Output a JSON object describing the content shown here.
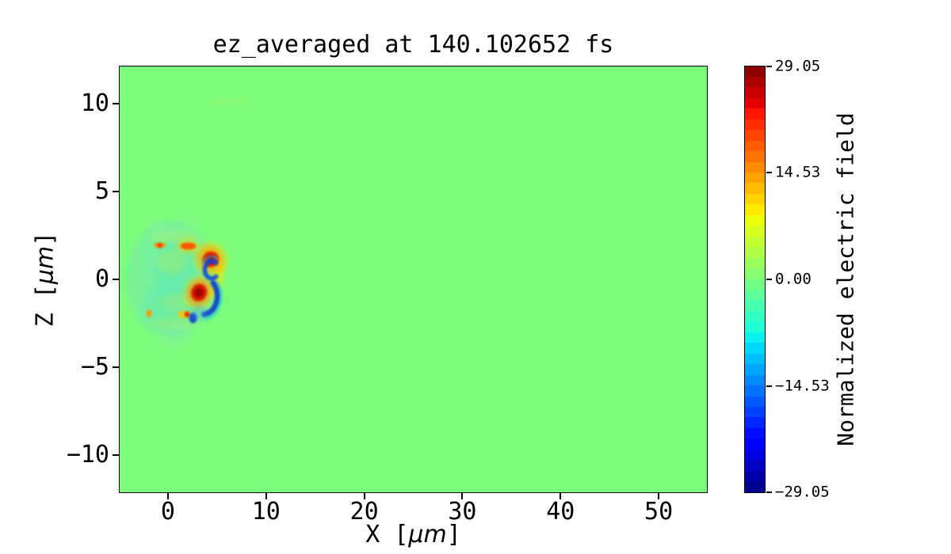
{
  "figure": {
    "background": "#ffffff"
  },
  "chart_data": {
    "type": "heatmap",
    "title": "ez_averaged at 140.102652 fs",
    "xlabel": "X [μm]",
    "ylabel": "Z [μm]",
    "xlabel_parts": {
      "pre": "X [",
      "math": "μm",
      "post": "]"
    },
    "ylabel_parts": {
      "pre": "Z [",
      "math": "μm",
      "post": "]"
    },
    "xlim": [
      -5,
      55
    ],
    "ylim": [
      -12.15,
      12.15
    ],
    "x_ticks": [
      0,
      10,
      20,
      30,
      40,
      50
    ],
    "x_tick_labels": [
      "0",
      "10",
      "20",
      "30",
      "40",
      "50"
    ],
    "y_ticks": [
      10,
      5,
      0,
      -5,
      -10
    ],
    "y_tick_labels": [
      "10",
      "5",
      "0",
      "−5",
      "−10"
    ],
    "grid": false,
    "colormap": "jet",
    "n_levels": 40,
    "field_background_value": 0.0,
    "plot_bg_color": "#7bfd7b",
    "colorbar": {
      "label": "Normalized electric field",
      "vmin": -29.05,
      "vmax": 29.05,
      "ticks": [
        29.05,
        14.53,
        0.0,
        -14.53,
        -29.05
      ],
      "tick_labels": [
        "29.05",
        "14.53",
        "0.00",
        "−14.53",
        "−29.05"
      ]
    },
    "features": [
      {
        "k": "e",
        "x": 0.3,
        "z": 0.0,
        "rx": 4.6,
        "rz": 3.3,
        "c": "#6ce9b4",
        "o": 0.5,
        "f": 2
      },
      {
        "k": "e",
        "x": 1.2,
        "z": 0.3,
        "rx": 2.6,
        "rz": 2.2,
        "c": "#58e2c8",
        "o": 0.35,
        "f": 2
      },
      {
        "k": "e",
        "x": 0.0,
        "z": -1.6,
        "rx": 2.6,
        "rz": 1.5,
        "c": "#62e6be",
        "o": 0.3,
        "f": 2
      },
      {
        "k": "e",
        "x": -3.3,
        "z": 0.3,
        "rx": 0.25,
        "rz": 2.4,
        "c": "#98ee8e",
        "o": 0.45,
        "f": 2
      },
      {
        "k": "e",
        "x": -2.5,
        "z": -0.8,
        "rx": 0.2,
        "rz": 2.0,
        "c": "#8ceca2",
        "o": 0.4,
        "f": 2
      },
      {
        "k": "e",
        "x": -4.0,
        "z": -1.2,
        "rx": 0.18,
        "rz": 1.6,
        "c": "#a2f082",
        "o": 0.35,
        "f": 2
      },
      {
        "k": "e",
        "x": -1.6,
        "z": 0.8,
        "rx": 0.3,
        "rz": 2.6,
        "c": "#84ecb8",
        "o": 0.35,
        "f": 2
      },
      {
        "k": "e",
        "x": 0.3,
        "z": 1.0,
        "rx": 1.5,
        "rz": 0.7,
        "c": "#aaee66",
        "o": 0.4,
        "f": 2
      },
      {
        "k": "e",
        "x": 0.8,
        "z": -1.3,
        "rx": 1.5,
        "rz": 0.5,
        "c": "#aaee66",
        "o": 0.4,
        "f": 2
      },
      {
        "k": "e",
        "x": 0.6,
        "z": 2.45,
        "rx": 2.6,
        "rz": 0.35,
        "c": "#bcf262",
        "o": 0.4,
        "f": 2
      },
      {
        "k": "e",
        "x": 0.6,
        "z": -2.55,
        "rx": 2.6,
        "rz": 0.35,
        "c": "#bcf262",
        "o": 0.35,
        "f": 2
      },
      {
        "k": "e",
        "x": -0.5,
        "z": 2.9,
        "rx": 1.6,
        "rz": 0.5,
        "c": "#90eea0",
        "o": 0.3,
        "f": 2
      },
      {
        "k": "e",
        "x": 1.8,
        "z": 3.2,
        "rx": 1.2,
        "rz": 0.4,
        "c": "#90eea0",
        "o": 0.25,
        "f": 2
      },
      {
        "k": "e",
        "x": 0.5,
        "z": -3.3,
        "rx": 1.8,
        "rz": 0.6,
        "c": "#8eeda6",
        "o": 0.3,
        "f": 2
      },
      {
        "k": "e",
        "x": 6.2,
        "z": 10.15,
        "rx": 2.3,
        "rz": 0.12,
        "c": "#c4f25e",
        "o": 0.4,
        "f": 2
      },
      {
        "k": "a",
        "x": 3.5,
        "z": 0.35,
        "rx": 1.7,
        "rz": 1.3,
        "a0": -60,
        "a1": 70,
        "w": 0.5,
        "c": "#ffe400",
        "o": 0.75,
        "f": 2
      },
      {
        "k": "e",
        "x": 4.3,
        "z": 1.15,
        "rx": 1.7,
        "rz": 1.0,
        "rot": -35,
        "c": "#ffe000",
        "o": 0.45,
        "f": 2
      },
      {
        "k": "e",
        "x": 4.3,
        "z": 1.15,
        "rx": 1.3,
        "rz": 0.8,
        "rot": -35,
        "c": "#ff9000",
        "o": 0.5,
        "f": 2
      },
      {
        "k": "e",
        "x": 2.0,
        "z": 1.9,
        "rx": 1.1,
        "rz": 0.4,
        "c": "#ffd800",
        "o": 0.6,
        "f": 2
      },
      {
        "k": "e",
        "x": 3.1,
        "z": -0.75,
        "rx": 1.5,
        "rz": 1.0,
        "rot": 20,
        "c": "#ffdc00",
        "o": 0.45,
        "f": 2
      },
      {
        "k": "e",
        "x": 3.1,
        "z": -0.75,
        "rx": 1.15,
        "rz": 0.75,
        "rot": 20,
        "c": "#ff7800",
        "o": 0.6,
        "f": 2
      },
      {
        "k": "e",
        "x": -0.9,
        "z": 1.95,
        "rx": 0.6,
        "rz": 0.16,
        "c": "#ff8800",
        "o": 0.9,
        "f": 1
      },
      {
        "k": "e",
        "x": -0.9,
        "z": 1.95,
        "rx": 0.25,
        "rz": 0.12,
        "c": "#e03000",
        "o": 0.9,
        "f": 1
      },
      {
        "k": "e",
        "x": 2.0,
        "z": 1.9,
        "rx": 0.8,
        "rz": 0.2,
        "c": "#ff5000",
        "o": 0.95,
        "f": 1
      },
      {
        "k": "e",
        "x": 4.3,
        "z": 1.15,
        "rx": 0.85,
        "rz": 0.45,
        "rot": -35,
        "c": "#e02800",
        "o": 0.95,
        "f": 1
      },
      {
        "k": "e",
        "x": 4.3,
        "z": 1.15,
        "rx": 0.5,
        "rz": 0.25,
        "rot": -35,
        "c": "#a80000",
        "o": 0.95,
        "f": 1
      },
      {
        "k": "e",
        "x": 3.1,
        "z": -0.75,
        "rx": 0.8,
        "rz": 0.5,
        "rot": 20,
        "c": "#d81800",
        "o": 0.95,
        "f": 1
      },
      {
        "k": "e",
        "x": 3.1,
        "z": -0.75,
        "rx": 0.45,
        "rz": 0.28,
        "rot": 20,
        "c": "#9c0000",
        "o": 0.9,
        "f": 1
      },
      {
        "k": "a",
        "x": 4.4,
        "z": 0.55,
        "rx": 0.7,
        "rz": 0.5,
        "a0": 50,
        "a1": 310,
        "w": 0.32,
        "c": "#0846e0",
        "o": 0.9,
        "f": 1
      },
      {
        "k": "a",
        "x": 4.4,
        "z": 0.55,
        "rx": 1.0,
        "rz": 0.75,
        "a0": 60,
        "a1": 150,
        "w": 0.2,
        "c": "#22ccec",
        "o": 0.5,
        "f": 1
      },
      {
        "k": "a",
        "x": 3.5,
        "z": -0.95,
        "rx": 1.5,
        "rz": 1.05,
        "a0": -85,
        "a1": 45,
        "w": 0.42,
        "c": "#0838d2",
        "o": 0.9,
        "f": 1
      },
      {
        "k": "a",
        "x": 3.5,
        "z": -0.95,
        "rx": 1.85,
        "rz": 1.35,
        "a0": -80,
        "a1": 35,
        "w": 0.22,
        "c": "#1ec6ec",
        "o": 0.55,
        "f": 1
      },
      {
        "k": "e",
        "x": -2.0,
        "z": -1.95,
        "rx": 0.3,
        "rz": 0.22,
        "c": "#ff9000",
        "o": 0.85,
        "f": 1
      },
      {
        "k": "e",
        "x": 1.6,
        "z": -2.0,
        "rx": 0.7,
        "rz": 0.22,
        "c": "#ffc400",
        "o": 0.8,
        "f": 1
      },
      {
        "k": "e",
        "x": 1.9,
        "z": -2.0,
        "rx": 0.28,
        "rz": 0.16,
        "c": "#e02800",
        "o": 0.9,
        "f": 1
      },
      {
        "k": "e",
        "x": 2.5,
        "z": -2.2,
        "rx": 0.4,
        "rz": 0.3,
        "c": "#1030d0",
        "o": 0.9,
        "f": 1
      },
      {
        "k": "e",
        "x": 3.1,
        "z": -1.9,
        "rx": 0.8,
        "rz": 0.4,
        "rot": -30,
        "c": "#4aa8e8",
        "o": 0.4,
        "f": 2
      }
    ]
  }
}
